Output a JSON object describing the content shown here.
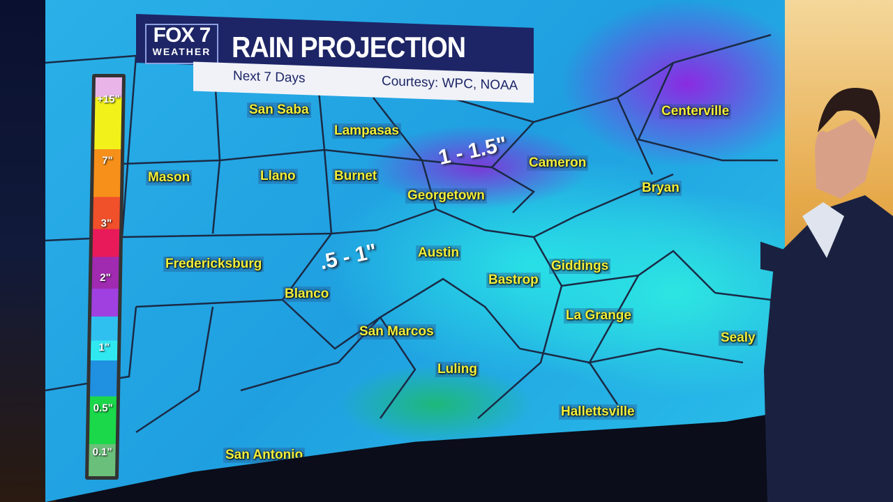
{
  "broadcast": {
    "logo_line1": "FOX 7",
    "logo_line2": "WEATHER",
    "title": "RAIN PROJECTION",
    "subtitle": "Next 7 Days",
    "credit": "Courtesy: WPC, NOAA"
  },
  "legend": {
    "ticks": [
      "+15\"",
      "7\"",
      "3\"",
      "2\"",
      "1\"",
      "0.5\"",
      "0.1\""
    ],
    "colors": [
      "#e9b5e9",
      "#f2f21a",
      "#f6901a",
      "#e81a5a",
      "#a040e0",
      "#30e8f0",
      "#2090e0",
      "#1ad84a",
      "#6ac07a"
    ]
  },
  "annotations": [
    "1 - 1.5\"",
    ".5 - 1\""
  ],
  "cities": [
    "San Saba",
    "Lampasas",
    "Mason",
    "Llano",
    "Burnet",
    "Georgetown",
    "Cameron",
    "Centerville",
    "Bryan",
    "Fredericksburg",
    "Blanco",
    "Austin",
    "Giddings",
    "Bastrop",
    "La Grange",
    "Sealy",
    "San Marcos",
    "Luling",
    "Hallettsville",
    "San Antonio"
  ]
}
